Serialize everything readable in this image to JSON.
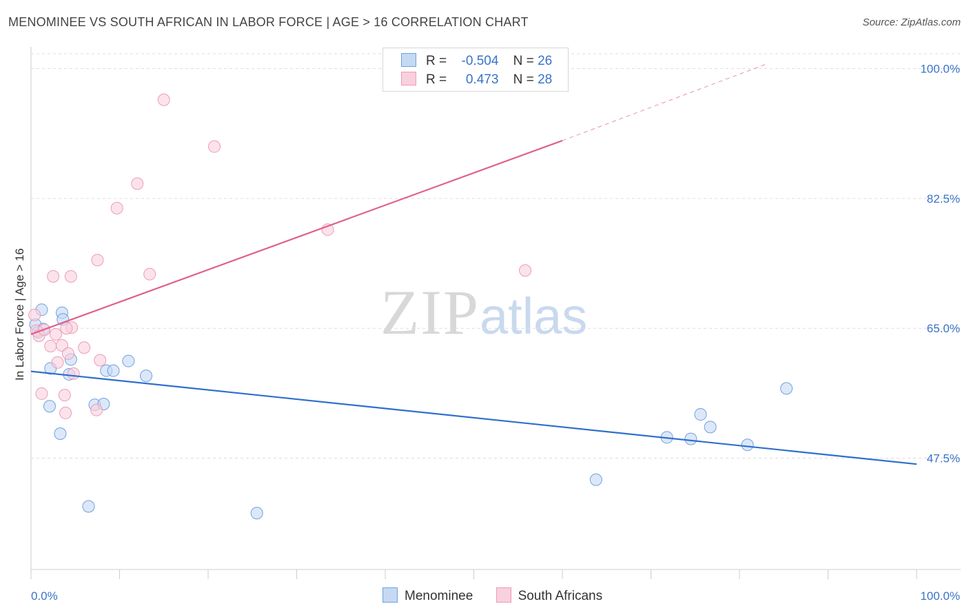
{
  "chart_data": {
    "type": "scatter",
    "title": "MENOMINEE VS SOUTH AFRICAN IN LABOR FORCE | AGE > 16 CORRELATION CHART",
    "source": "Source: ZipAtlas.com",
    "xlabel": "",
    "ylabel": "In Labor Force | Age > 16",
    "x_tick_labels": [
      "0.0%",
      "100.0%"
    ],
    "y_tick_labels": [
      "100.0%",
      "82.5%",
      "65.0%",
      "47.5%"
    ],
    "y_ticks": [
      100.0,
      82.5,
      65.0,
      47.5
    ],
    "xlim": [
      0,
      100
    ],
    "ylim": [
      32.5,
      102.0
    ],
    "grid": true,
    "legend_position": "top-center",
    "watermark": {
      "zip": "ZIP",
      "atlas": "atlas"
    },
    "series": [
      {
        "name": "Menominee",
        "color": "#6fa0e0",
        "fill": "#c5d9f3",
        "line_color": "#2f6fcc",
        "r_label": "R =",
        "r": "-0.504",
        "n_label": "N =",
        "n": "26",
        "points": [
          [
            0.5,
            65.5
          ],
          [
            1.2,
            67.5
          ],
          [
            1.4,
            64.9
          ],
          [
            3.5,
            67.1
          ],
          [
            3.6,
            66.2
          ],
          [
            2.2,
            59.6
          ],
          [
            4.5,
            60.8
          ],
          [
            4.3,
            58.8
          ],
          [
            2.1,
            54.5
          ],
          [
            3.3,
            50.8
          ],
          [
            8.5,
            59.3
          ],
          [
            9.3,
            59.3
          ],
          [
            11.0,
            60.6
          ],
          [
            13.0,
            58.6
          ],
          [
            7.2,
            54.7
          ],
          [
            8.2,
            54.8
          ],
          [
            6.5,
            41.0
          ],
          [
            25.5,
            40.1
          ],
          [
            63.8,
            44.6
          ],
          [
            71.8,
            50.3
          ],
          [
            74.5,
            50.1
          ],
          [
            75.6,
            53.4
          ],
          [
            76.7,
            51.7
          ],
          [
            80.9,
            49.3
          ],
          [
            85.3,
            56.9
          ],
          [
            0.8,
            64.5
          ]
        ],
        "trend": {
          "x0": 0,
          "y0": 59.2,
          "x1": 100,
          "y1": 46.7
        }
      },
      {
        "name": "South Africans",
        "color": "#ee9bb5",
        "fill": "#f9d0dd",
        "line_color": "#e0608d",
        "r_label": "R =",
        "r": "0.473",
        "n_label": "N =",
        "n": "28",
        "points": [
          [
            0.4,
            66.8
          ],
          [
            0.6,
            64.7
          ],
          [
            0.9,
            64.0
          ],
          [
            1.5,
            64.8
          ],
          [
            2.2,
            62.6
          ],
          [
            1.2,
            56.2
          ],
          [
            2.5,
            72.0
          ],
          [
            3.0,
            60.4
          ],
          [
            3.5,
            62.7
          ],
          [
            3.8,
            56.0
          ],
          [
            3.9,
            53.6
          ],
          [
            4.2,
            61.6
          ],
          [
            4.5,
            72.0
          ],
          [
            4.6,
            65.1
          ],
          [
            4.8,
            58.9
          ],
          [
            6.0,
            62.4
          ],
          [
            7.4,
            54.0
          ],
          [
            7.5,
            74.2
          ],
          [
            7.8,
            60.7
          ],
          [
            9.7,
            81.2
          ],
          [
            12.0,
            84.5
          ],
          [
            13.4,
            72.3
          ],
          [
            15.0,
            95.8
          ],
          [
            20.7,
            89.5
          ],
          [
            33.5,
            78.3
          ],
          [
            55.8,
            72.8
          ],
          [
            4.0,
            65.0
          ],
          [
            2.8,
            64.2
          ]
        ],
        "trend": {
          "x0": 0,
          "y0": 64.2,
          "x1": 60,
          "y1": 90.3
        },
        "trend_dashed": {
          "x0": 60,
          "y0": 90.3,
          "x1": 83,
          "y1": 100.6
        }
      }
    ]
  }
}
